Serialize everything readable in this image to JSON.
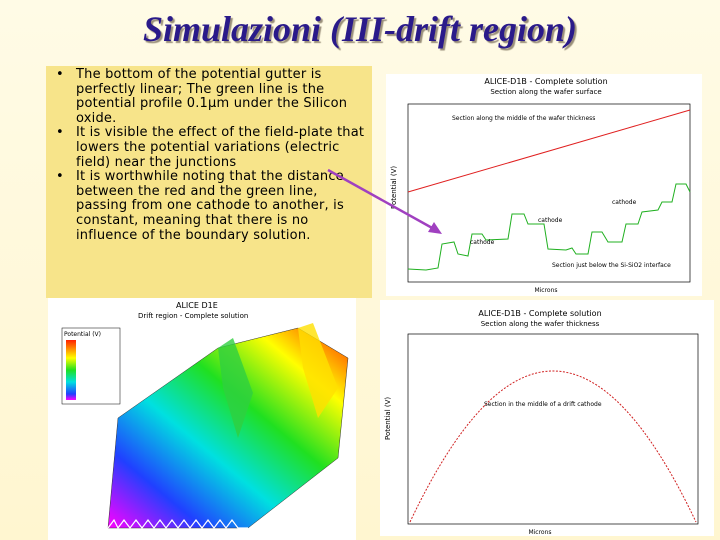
{
  "title": "Simulazioni (III-drift region)",
  "bullets": [
    "The bottom of the potential gutter is perfectly linear; The green line is the potential profile 0.1µm under the Silicon oxide.",
    "It is visible the effect of the field-plate that lowers the potential variations (electric field) near the junctions",
    "It is worthwhile noting that the distance between the red and the green line, passing from one cathode to another, is constant, meaning that there is no influence of the boundary solution."
  ],
  "top_plot": {
    "title": "ALICE-D1B - Complete solution",
    "subtitle": "Section along the wafer surface",
    "red_label": "Section along the middle of the wafer thickness",
    "y_label": "Potential (V)",
    "cathode_1": "cathode",
    "cathode_2": "cathode",
    "cathode_3": "cathode",
    "green_label": "Section just below the Si-SiO2 interface",
    "x_label": "Microns"
  },
  "surface_plot": {
    "title": "ALICE D1E",
    "subtitle": "Drift region - Complete solution",
    "legend_title": "Potential (V)"
  },
  "bottom_plot": {
    "title": "ALICE-D1B - Complete solution",
    "subtitle": "Section along the wafer thickness",
    "curve_label": "Section in the middle of a drift cathode",
    "y_label": "Potential (V)",
    "x_label": "Microns"
  }
}
